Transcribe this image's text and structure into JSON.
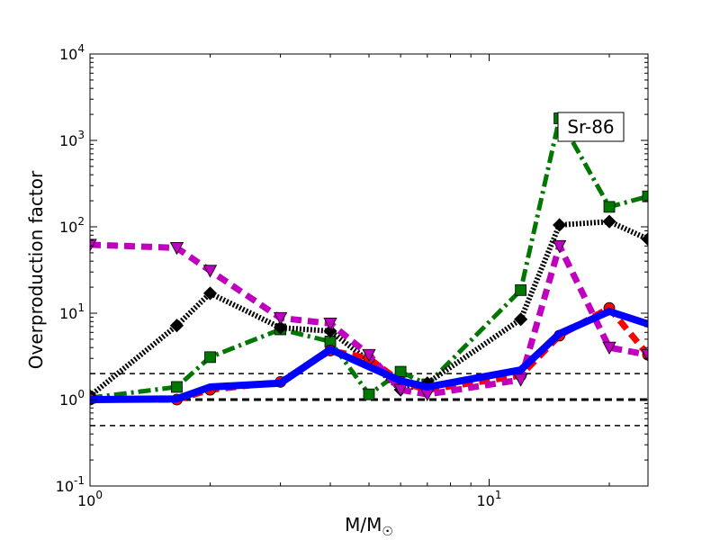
{
  "chart_data": {
    "type": "line",
    "xscale": "log",
    "yscale": "log",
    "xlim": [
      1,
      25
    ],
    "ylim": [
      0.1,
      10000
    ],
    "xlabel": "M/M",
    "xlabel_subscript": "☉",
    "ylabel": "Overproduction factor",
    "annotation": "Sr-86",
    "xticks": [
      {
        "value": 1,
        "base": "10",
        "exp": "0"
      },
      {
        "value": 10,
        "base": "10",
        "exp": "1"
      }
    ],
    "yticks": [
      {
        "value": 0.1,
        "base": "10",
        "exp": "-1"
      },
      {
        "value": 1,
        "base": "10",
        "exp": "0"
      },
      {
        "value": 10,
        "base": "10",
        "exp": "1"
      },
      {
        "value": 100,
        "base": "10",
        "exp": "2"
      },
      {
        "value": 1000,
        "base": "10",
        "exp": "3"
      },
      {
        "value": 10000,
        "base": "10",
        "exp": "4"
      }
    ],
    "reference_lines": [
      {
        "y": 2,
        "style": "dashed-thin",
        "color": "#000000"
      },
      {
        "y": 1,
        "style": "dashed-thick",
        "color": "#000000"
      },
      {
        "y": 0.5,
        "style": "dashed-thin",
        "color": "#000000"
      }
    ],
    "series": [
      {
        "style": "dashdot",
        "color": "#007700",
        "marker": "square",
        "x": [
          1,
          1.65,
          2,
          3,
          4,
          5,
          6,
          7,
          12,
          15,
          20,
          25
        ],
        "y": [
          1.05,
          1.4,
          3.1,
          6.5,
          4.7,
          1.15,
          2.1,
          1.5,
          18.5,
          1800,
          170,
          225
        ]
      },
      {
        "style": "dotted",
        "color": "#000000",
        "marker": "diamond",
        "x": [
          1,
          1.65,
          2,
          3,
          4,
          5,
          6,
          7,
          12,
          15,
          20,
          25
        ],
        "y": [
          1.1,
          7.2,
          17,
          6.8,
          6.2,
          2.8,
          1.3,
          1.55,
          8.5,
          105,
          115,
          72
        ]
      },
      {
        "style": "dashed",
        "color": "#ff0000",
        "marker": "circle",
        "x": [
          1,
          1.65,
          2,
          3,
          4,
          5,
          6,
          7,
          12,
          15,
          20,
          25
        ],
        "y": [
          1.0,
          1.0,
          1.3,
          1.6,
          3.7,
          3.0,
          1.6,
          1.3,
          1.9,
          5.5,
          11.5,
          3.3
        ]
      },
      {
        "style": "dashed",
        "color": "#bf00bf",
        "marker": "triangle-down",
        "x": [
          1,
          1.65,
          2,
          3,
          4,
          5,
          6,
          7,
          12,
          15,
          20,
          25
        ],
        "y": [
          62,
          57,
          31,
          8.8,
          7.6,
          3.3,
          1.3,
          1.15,
          1.7,
          60,
          4.0,
          3.3
        ]
      },
      {
        "style": "solid",
        "color": "#0000ff",
        "marker": "none",
        "x": [
          1,
          1.65,
          2,
          3,
          4,
          5,
          6,
          7,
          12,
          15,
          20,
          25
        ],
        "y": [
          1.0,
          1.02,
          1.4,
          1.55,
          3.8,
          2.4,
          1.65,
          1.4,
          2.2,
          5.8,
          10.5,
          7.5
        ]
      }
    ]
  }
}
